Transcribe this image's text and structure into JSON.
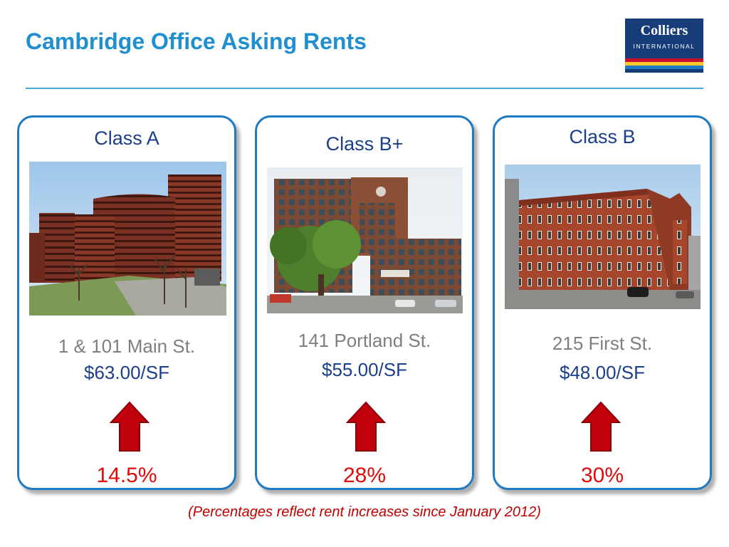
{
  "slide": {
    "title": "Cambridge Office Asking Rents",
    "footnote": "(Percentages reflect rent increases since January 2012)"
  },
  "logo": {
    "name": "Colliers",
    "subtitle": "INTERNATIONAL",
    "stripe_colors": [
      "#c8102e",
      "#ffc72c",
      "#1e7ac2"
    ]
  },
  "colors": {
    "title": "#1f8fcf",
    "card_border": "#1e7ac2",
    "class_heading": "#1b3f8a",
    "address": "#7f7f7f",
    "rent": "#1b3f8a",
    "increase": "#e00b0b",
    "arrow": "#c0000a"
  },
  "cards": [
    {
      "class_label": "Class A",
      "address": "1 & 101 Main St.",
      "rent": "$63.00/SF",
      "increase": "14.5%",
      "trend_icon": "arrow-up-icon",
      "photo": "modern red-brick high-rise office tower"
    },
    {
      "class_label": "Class B+",
      "address": "141 Portland St.",
      "rent": "$55.00/SF",
      "increase": "28%",
      "trend_icon": "arrow-up-icon",
      "photo": "brick mill-style office building with tree"
    },
    {
      "class_label": "Class B",
      "address": "215 First St.",
      "rent": "$48.00/SF",
      "increase": "30%",
      "trend_icon": "arrow-up-icon",
      "photo": "historic red-brick office building"
    }
  ]
}
